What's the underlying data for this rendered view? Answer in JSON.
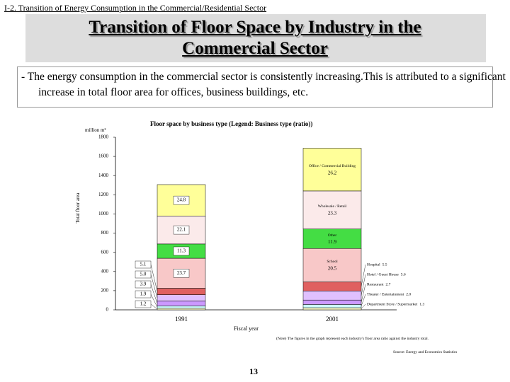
{
  "slide": {
    "section": "I-2. Transition of Energy Consumption in the Commercial/Residential Sector",
    "title": "Transition of Floor Space by Industry in the Commercial Sector",
    "bullet": "- The energy consumption in the commercial sector is consistently increasing.This is attributed to a significant increase in total floor area for offices, business buildings, etc.",
    "note": "(Note) The figures in the graph represent each industry's floor area ratio against the industry total.",
    "source": "Source: Energy and Economics Statistics",
    "page": "13"
  },
  "chart_data": {
    "type": "stacked_bar",
    "title": "Floor space by business type (Legend: Business type (ratio))",
    "y_label": "Total floor area",
    "y_unit": "million m²",
    "x_label": "Fiscal year",
    "categories": [
      "1991",
      "2001"
    ],
    "ylim": [
      0,
      1800
    ],
    "yticks": [
      0,
      200,
      400,
      600,
      800,
      1000,
      1200,
      1400,
      1600,
      1800
    ],
    "series": [
      {
        "name": "Department Store / Supermarket",
        "color": "#ffffcc",
        "values": [
          16,
          22
        ],
        "ratio_labels": [
          "1.2",
          "1.3"
        ]
      },
      {
        "name": "Theater / Entertainment",
        "color": "#ccffff",
        "values": [
          25,
          34
        ],
        "ratio_labels": [
          "1.9",
          "2.0"
        ]
      },
      {
        "name": "Restaurant",
        "color": "#cc99ff",
        "values": [
          51,
          46
        ],
        "ratio_labels": [
          "3.9",
          "2.7"
        ]
      },
      {
        "name": "Hotel / Guest House",
        "color": "#e0c0ff",
        "values": [
          66,
          95
        ],
        "ratio_labels": [
          "5.0",
          "5.6"
        ]
      },
      {
        "name": "Hospital",
        "color": "#e06060",
        "values": [
          67,
          94
        ],
        "ratio_labels": [
          "5.1",
          "5.5"
        ]
      },
      {
        "name": "School",
        "color": "#f8c8c8",
        "values": [
          313,
          349
        ],
        "ratio_labels": [
          "23.7",
          "20.5"
        ]
      },
      {
        "name": "Other",
        "color": "#44dd44",
        "values": [
          149,
          203
        ],
        "ratio_labels": [
          "11.3",
          "11.9"
        ]
      },
      {
        "name": "Wholesale / Retail",
        "color": "#fbeaea",
        "values": [
          292,
          397
        ],
        "ratio_labels": [
          "22.1",
          "23.3"
        ]
      },
      {
        "name": "Office / Commercial Building",
        "color": "#ffff99",
        "values": [
          327,
          446
        ],
        "ratio_labels": [
          "24.8",
          "26.2"
        ]
      }
    ]
  }
}
